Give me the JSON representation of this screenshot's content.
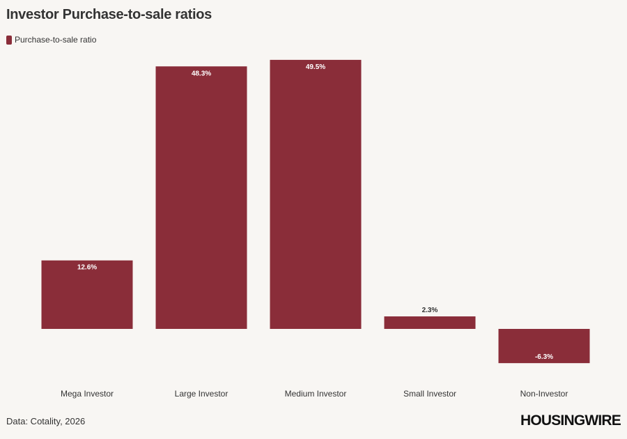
{
  "title": "Investor Purchase-to-sale ratios",
  "source": "Data: Cotality, 2026",
  "logo": "HOUSINGWIRE",
  "colors": {
    "bar": "#8a2d39",
    "background": "#f8f6f3"
  },
  "chart_data": {
    "type": "bar",
    "categories": [
      "Mega Investor",
      "Large Investor",
      "Medium Investor",
      "Small Investor",
      "Non-Investor"
    ],
    "series": [
      {
        "name": "Purchase-to-sale ratio",
        "values": [
          12.6,
          48.3,
          49.5,
          2.3,
          -6.3
        ]
      }
    ],
    "data_labels": [
      "12.6%",
      "48.3%",
      "49.5%",
      "2.3%",
      "-6.3%"
    ],
    "grid": false,
    "legend": "top-left"
  }
}
